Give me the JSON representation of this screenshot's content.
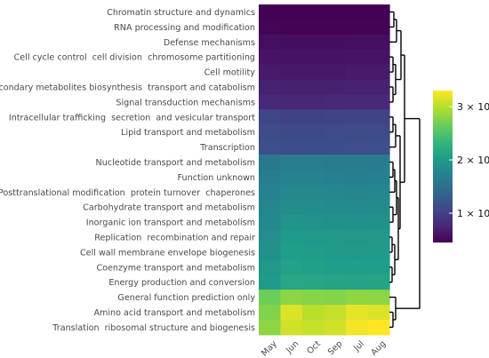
{
  "chart_data": {
    "type": "heatmap",
    "title": "",
    "xlabel": "",
    "ylabel": "",
    "columns": [
      "May",
      "Jun",
      "Oct",
      "Sep",
      "Jul",
      "Aug"
    ],
    "rows": [
      "Chromatin structure and dynamics",
      "RNA processing and modification",
      "Defense mechanisms",
      "Cell cycle control  cell division  chromosome partitioning",
      "Cell motility",
      "Secondary metabolites biosynthesis  transport and catabolism",
      "Signal transduction mechanisms",
      "Intracellular trafficking  secretion  and vesicular transport",
      "Lipid transport and metabolism",
      "Transcription",
      "Nucleotide transport and metabolism",
      "Function unknown",
      "Posttranslational modification  protein turnover  chaperones",
      "Carbohydrate transport and metabolism",
      "Inorganic ion transport and metabolism",
      "Replication  recombination and repair",
      "Cell wall membrane envelope biogenesis",
      "Coenzyme transport and metabolism",
      "Energy production and conversion",
      "General function prediction only",
      "Amino acid transport and metabolism",
      "Translation  ribosomal structure and biogenesis"
    ],
    "values": [
      [
        460000,
        460000,
        460000,
        460000,
        460000,
        460000
      ],
      [
        480000,
        470000,
        470000,
        470000,
        470000,
        470000
      ],
      [
        560000,
        550000,
        550000,
        550000,
        560000,
        560000
      ],
      [
        600000,
        590000,
        590000,
        590000,
        600000,
        600000
      ],
      [
        650000,
        640000,
        640000,
        640000,
        650000,
        650000
      ],
      [
        720000,
        700000,
        700000,
        700000,
        710000,
        710000
      ],
      [
        780000,
        760000,
        760000,
        770000,
        770000,
        770000
      ],
      [
        1050000,
        1020000,
        1020000,
        1030000,
        1040000,
        1040000
      ],
      [
        1100000,
        1080000,
        1080000,
        1090000,
        1100000,
        1090000
      ],
      [
        1150000,
        1120000,
        1120000,
        1130000,
        1140000,
        1140000
      ],
      [
        1600000,
        1650000,
        1650000,
        1640000,
        1630000,
        1640000
      ],
      [
        1650000,
        1700000,
        1700000,
        1690000,
        1680000,
        1690000
      ],
      [
        1720000,
        1780000,
        1780000,
        1770000,
        1760000,
        1770000
      ],
      [
        1760000,
        1840000,
        1830000,
        1820000,
        1810000,
        1820000
      ],
      [
        1800000,
        1920000,
        1900000,
        1890000,
        1880000,
        1890000
      ],
      [
        1850000,
        2000000,
        1980000,
        1960000,
        1950000,
        1960000
      ],
      [
        1880000,
        2030000,
        2010000,
        1990000,
        1980000,
        1990000
      ],
      [
        1950000,
        2080000,
        2060000,
        2040000,
        2030000,
        2040000
      ],
      [
        2000000,
        2150000,
        2130000,
        2110000,
        2100000,
        2110000
      ],
      [
        2650000,
        2800000,
        2780000,
        2760000,
        2820000,
        2800000
      ],
      [
        2750000,
        3150000,
        3000000,
        3050000,
        3200000,
        3150000
      ],
      [
        2800000,
        3100000,
        3050000,
        3100000,
        3250000,
        3300000
      ]
    ],
    "colorbar": {
      "min": 450000,
      "max": 3300000,
      "ticks": [
        {
          "value": 1000000,
          "label": "1 × 10⁶"
        },
        {
          "value": 2000000,
          "label": "2 × 10⁶"
        },
        {
          "value": 3000000,
          "label": "3 × 10⁶"
        }
      ],
      "colormap": "viridis"
    },
    "dendrogram": "row",
    "grid": false
  }
}
